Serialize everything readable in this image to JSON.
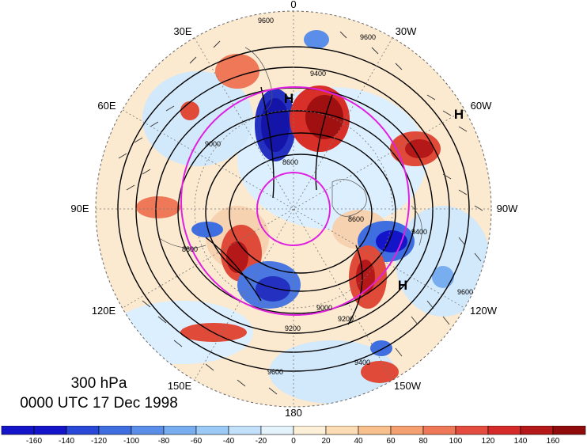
{
  "map": {
    "projection": "north-polar-stereographic",
    "longitude_labels": [
      "0",
      "30W",
      "60W",
      "90W",
      "120W",
      "150W",
      "180",
      "150E",
      "120E",
      "90E",
      "60E",
      "30E"
    ],
    "high_markers": [
      "H",
      "H",
      "H"
    ],
    "contour_labels": [
      "9600",
      "9000",
      "9600",
      "9400",
      "8600",
      "8600",
      "8800",
      "9400",
      "9200",
      "9000",
      "9200",
      "9400",
      "9600",
      "9600"
    ],
    "ring_color": "#e020e0",
    "contour_color": "#000000"
  },
  "caption": {
    "level": "300 hPa",
    "time": "0000 UTC 17 Dec 1998"
  },
  "colorbar": {
    "tick_labels": [
      "-160",
      "-140",
      "-120",
      "-100",
      "-80",
      "-60",
      "-40",
      "-20",
      "0",
      "20",
      "40",
      "60",
      "80",
      "100",
      "120",
      "140",
      "160"
    ],
    "colors": [
      "#1414c8",
      "#2a48d8",
      "#3f6ee0",
      "#5a8ee8",
      "#78aef0",
      "#9ccaf6",
      "#c2e0fa",
      "#e4f2fc",
      "#fdf0d8",
      "#fcdcb4",
      "#f8c08c",
      "#f4a070",
      "#ee7858",
      "#e44c40",
      "#d42a2a",
      "#b41818",
      "#900c0c"
    ]
  }
}
